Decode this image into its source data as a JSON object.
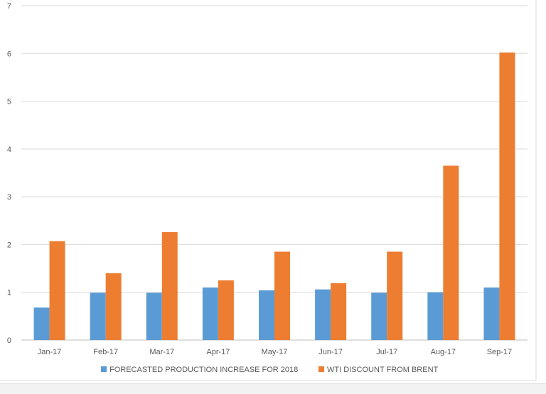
{
  "chart_data": {
    "type": "bar",
    "categories": [
      "Jan-17",
      "Feb-17",
      "Mar-17",
      "Apr-17",
      "May-17",
      "Jun-17",
      "Jul-17",
      "Aug-17",
      "Sep-17"
    ],
    "series": [
      {
        "name": "FORECASTED PRODUCTION INCREASE FOR 2018",
        "color": "#5B9BD5",
        "values": [
          0.68,
          0.99,
          0.99,
          1.1,
          1.04,
          1.06,
          0.99,
          1.0,
          1.1
        ]
      },
      {
        "name": "WTI DISCOUNT FROM BRENT",
        "color": "#ED7D31",
        "values": [
          2.07,
          1.4,
          2.26,
          1.25,
          1.85,
          1.19,
          1.85,
          3.65,
          6.02
        ]
      }
    ],
    "title": "",
    "xlabel": "",
    "ylabel": "",
    "ylim": [
      0,
      7
    ],
    "yticks": [
      "0",
      "1",
      "2",
      "3",
      "4",
      "5",
      "6",
      "7"
    ],
    "grid": true,
    "legend_position": "bottom"
  }
}
